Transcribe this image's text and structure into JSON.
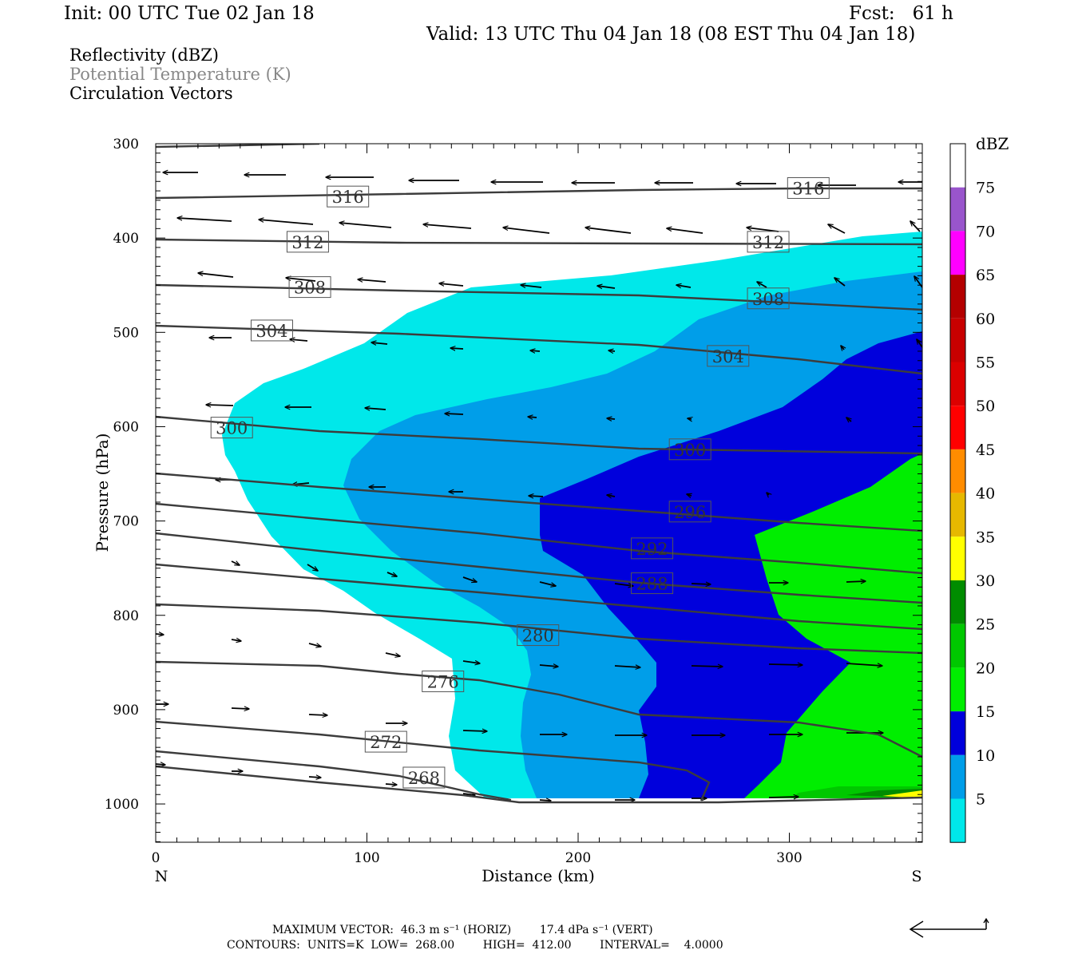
{
  "header": {
    "init": "Init: 00 UTC Tue 02 Jan 18",
    "fcst": "Fcst:   61 h",
    "valid": "Valid: 13 UTC Thu 04 Jan 18 (08 EST Thu 04 Jan 18)"
  },
  "legend_lines": {
    "reflectivity": "Reflectivity (dBZ)",
    "potential_temperature": "Potential Temperature (K)",
    "circulation": "Circulation Vectors"
  },
  "footer": {
    "max_vector": "MAXIMUM VECTOR:  46.3 m s⁻¹ (HORIZ)        17.4 dPa s⁻¹ (VERT)",
    "contours": "CONTOURS:  UNITS=K  LOW=  268.00        HIGH=  412.00        INTERVAL=    4.0000"
  },
  "colors": {
    "refl_5": "#00e8ea",
    "refl_10": "#009ee9",
    "refl_15": "#0000dc",
    "refl_20": "#00ee00",
    "refl_25": "#00c800",
    "refl_30": "#008c00",
    "refl_35": "#ffff00",
    "refl_40": "#e6b800",
    "refl_45": "#ff8c00",
    "refl_50": "#ff0000",
    "refl_55": "#dc0000",
    "refl_60": "#c80000",
    "refl_65": "#b40000",
    "refl_70": "#ff00ff",
    "refl_75": "#9955cc",
    "contour": "#3c3c3c"
  },
  "chart_data": {
    "type": "cross-section",
    "xlabel": "Distance (km)",
    "ylabel": "Pressure (hPa)",
    "xlim": [
      0,
      363
    ],
    "ylim": [
      1040,
      300
    ],
    "x_ticks": [
      "0",
      "100",
      "200",
      "300"
    ],
    "y_ticks": [
      "300",
      "400",
      "500",
      "600",
      "700",
      "800",
      "900",
      "1000"
    ],
    "x_end_labels": {
      "left": "N",
      "right": "S"
    },
    "colorbar": {
      "unit": "dBZ",
      "levels": [
        "5",
        "10",
        "15",
        "20",
        "25",
        "30",
        "35",
        "40",
        "45",
        "50",
        "55",
        "60",
        "65",
        "70",
        "75"
      ]
    },
    "theta_contour_labels": [
      {
        "value": "316",
        "x": 91,
        "p": 356
      },
      {
        "value": "316",
        "x": 309,
        "p": 347
      },
      {
        "value": "312",
        "x": 72,
        "p": 404
      },
      {
        "value": "312",
        "x": 290,
        "p": 404
      },
      {
        "value": "308",
        "x": 73,
        "p": 452
      },
      {
        "value": "308",
        "x": 290,
        "p": 464
      },
      {
        "value": "304",
        "x": 55,
        "p": 498
      },
      {
        "value": "304",
        "x": 271,
        "p": 525
      },
      {
        "value": "300",
        "x": 36,
        "p": 601
      },
      {
        "value": "300",
        "x": 253,
        "p": 624
      },
      {
        "value": "296",
        "x": 253,
        "p": 690
      },
      {
        "value": "292",
        "x": 235,
        "p": 729
      },
      {
        "value": "288",
        "x": 235,
        "p": 766
      },
      {
        "value": "280",
        "x": 181,
        "p": 821
      },
      {
        "value": "276",
        "x": 136,
        "p": 870
      },
      {
        "value": "272",
        "x": 109,
        "p": 934
      },
      {
        "value": "268",
        "x": 127,
        "p": 972
      }
    ]
  }
}
